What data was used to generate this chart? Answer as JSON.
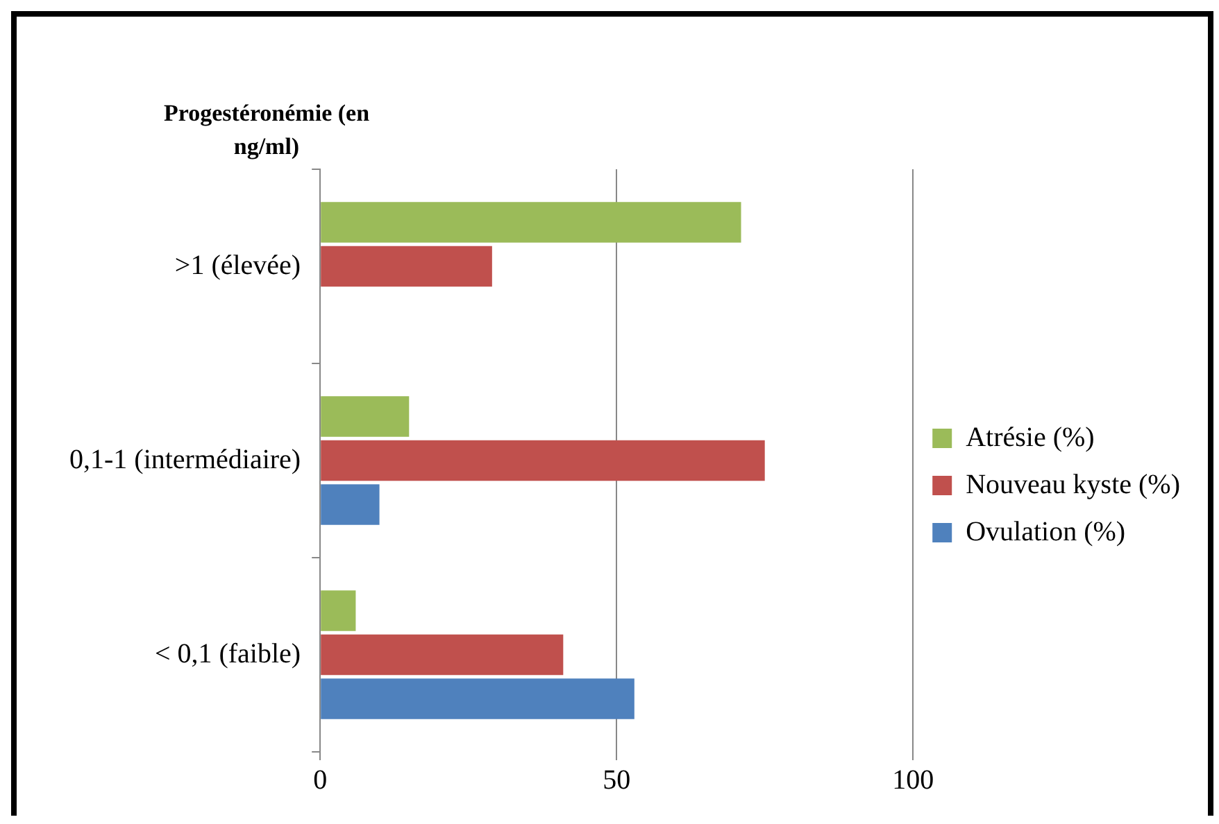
{
  "chart_data": {
    "type": "bar",
    "orientation": "horizontal",
    "ylabel": "Progestéronémie (en ng/ml)",
    "categories": [
      ">1 (élevée)",
      "0,1-1 (intermédiaire)",
      "< 0,1 (faible)"
    ],
    "series": [
      {
        "name": "Atrésie (%)",
        "color": "#9bbb59",
        "values": [
          71,
          15,
          6
        ]
      },
      {
        "name": "Nouveau kyste (%)",
        "color": "#c0504d",
        "values": [
          29,
          75,
          41
        ]
      },
      {
        "name": "Ovulation (%)",
        "color": "#4f81bd",
        "values": [
          0,
          10,
          53
        ]
      }
    ],
    "xlim": [
      0,
      100
    ],
    "xticks": [
      0,
      50,
      100
    ],
    "grid": "x",
    "legend": "right"
  }
}
